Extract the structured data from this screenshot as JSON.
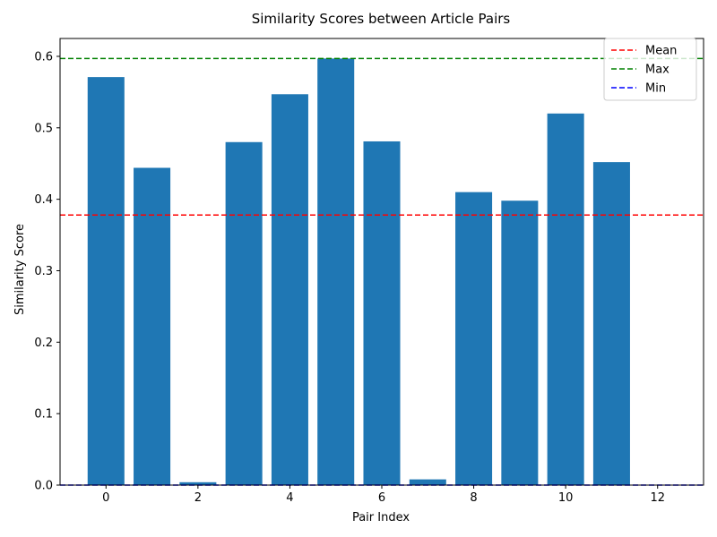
{
  "chart_data": {
    "type": "bar",
    "title": "Similarity Scores between Article Pairs",
    "xlabel": "Pair Index",
    "ylabel": "Similarity Score",
    "x": [
      0,
      1,
      2,
      3,
      4,
      5,
      6,
      7,
      8,
      9,
      10,
      11,
      12
    ],
    "values": [
      0.571,
      0.444,
      0.004,
      0.48,
      0.547,
      0.597,
      0.481,
      0.008,
      0.41,
      0.398,
      0.52,
      0.452,
      0.0
    ],
    "bar_color": "#1f77b4",
    "xlim": [
      -1,
      13
    ],
    "ylim": [
      0,
      0.625
    ],
    "xticks": [
      0,
      2,
      4,
      6,
      8,
      10,
      12
    ],
    "yticks": [
      0.0,
      0.1,
      0.2,
      0.3,
      0.4,
      0.5,
      0.6
    ],
    "reference_lines": [
      {
        "name": "Mean",
        "value": 0.378,
        "color": "#ff0000",
        "style": "dashed"
      },
      {
        "name": "Max",
        "value": 0.597,
        "color": "#008000",
        "style": "dashed"
      },
      {
        "name": "Min",
        "value": 0.0,
        "color": "#0000ff",
        "style": "dashed"
      }
    ],
    "legend_position": "top-right",
    "grid": false
  }
}
